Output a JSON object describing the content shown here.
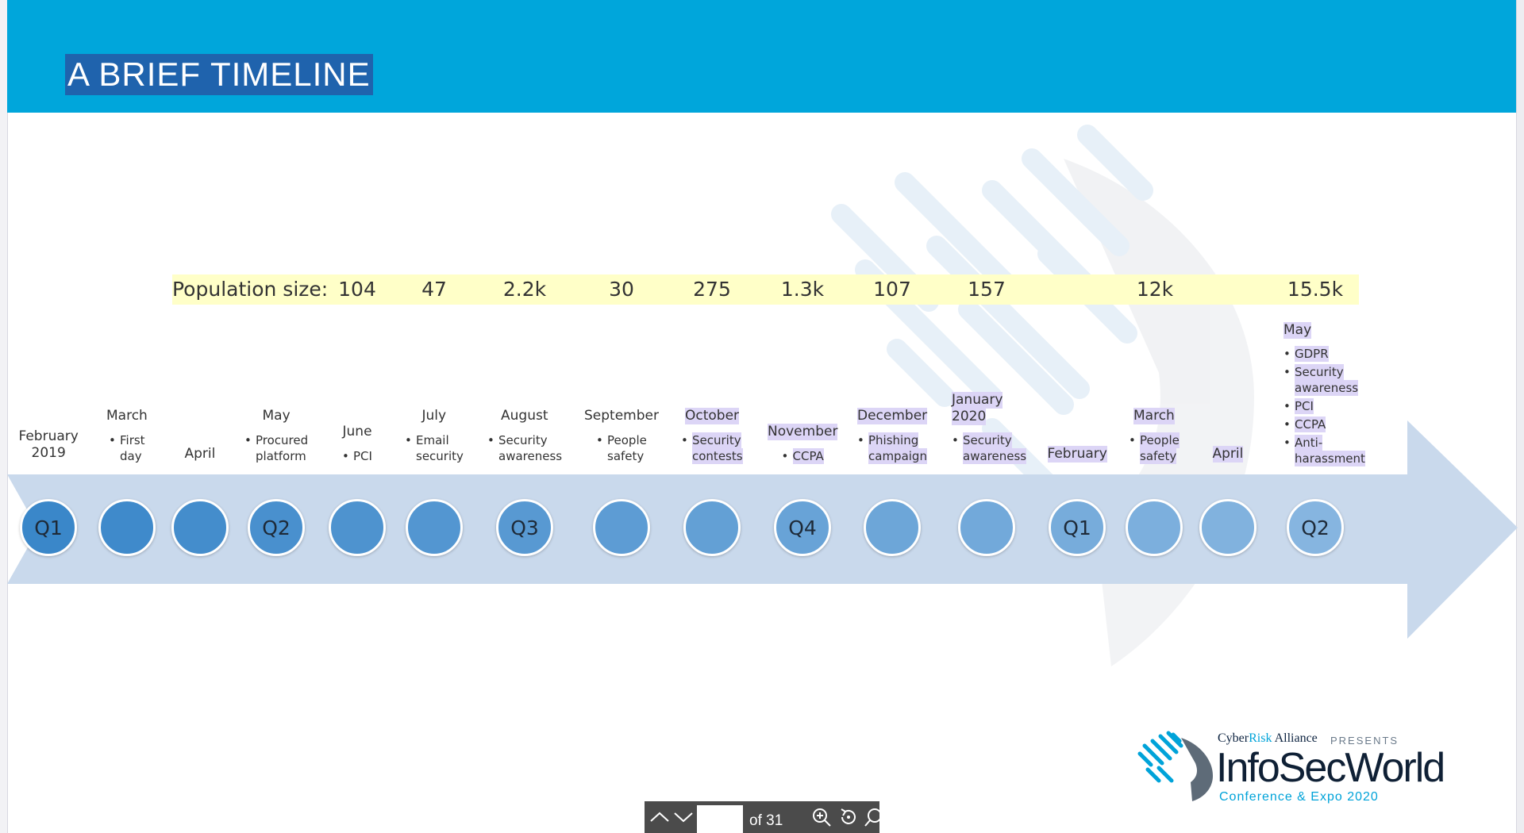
{
  "slide": {
    "title": "A BRIEF TIMELINE",
    "population_label": "Population size:",
    "population_values": [
      "104",
      "47",
      "2.2k",
      "30",
      "275",
      "1.3k",
      "107",
      "157",
      "12k",
      "15.5k"
    ],
    "quarter_circles": [
      "Q1",
      "",
      "",
      "Q2",
      "",
      "",
      "Q3",
      "",
      "",
      "Q4",
      "",
      "",
      "Q1",
      "",
      "",
      "Q2"
    ],
    "months": [
      {
        "lines": [
          "February",
          "2019"
        ]
      },
      {
        "lines": [
          "March"
        ],
        "items": [
          [
            "First",
            "day"
          ]
        ]
      },
      {
        "lines": [
          "April"
        ]
      },
      {
        "lines": [
          "May"
        ],
        "items": [
          [
            "Procured",
            "platform"
          ]
        ]
      },
      {
        "lines": [
          "June"
        ],
        "items": [
          [
            "PCI"
          ]
        ]
      },
      {
        "lines": [
          "July"
        ],
        "items": [
          [
            "Email",
            "security"
          ]
        ]
      },
      {
        "lines": [
          "August"
        ],
        "items": [
          [
            "Security",
            "awareness"
          ]
        ]
      },
      {
        "lines": [
          "September"
        ],
        "items": [
          [
            "People",
            "safety"
          ]
        ]
      },
      {
        "lines": [
          "October"
        ],
        "items": [
          [
            "Security",
            "contests"
          ]
        ]
      },
      {
        "lines": [
          "November"
        ],
        "items": [
          [
            "CCPA"
          ]
        ]
      },
      {
        "lines": [
          "December"
        ],
        "items": [
          [
            "Phishing",
            "campaign"
          ]
        ]
      },
      {
        "lines": [
          "January",
          "2020"
        ],
        "items": [
          [
            "Security",
            "awareness"
          ]
        ]
      },
      {
        "lines": [
          "February"
        ]
      },
      {
        "lines": [
          "March"
        ],
        "items": [
          [
            "People",
            "safety"
          ]
        ]
      },
      {
        "lines": [
          "April"
        ]
      },
      {
        "lines": [
          "May"
        ],
        "items": [
          [
            "GDPR"
          ],
          [
            "Security",
            "awareness"
          ],
          [
            "PCI"
          ],
          [
            "CCPA"
          ],
          [
            "Anti-",
            "harassment"
          ]
        ]
      }
    ]
  },
  "logo": {
    "cyber": "Cyber",
    "risk": "Risk",
    "alliance": " Alliance",
    "presents": "PRESENTS",
    "infosec": "InfoSec",
    "world": "World",
    "conference": "Conference & Expo 2020"
  },
  "toolbar": {
    "page_input_value": "",
    "page_total": "of 31",
    "prev_icon": "chevron-up-icon",
    "next_icon": "chevron-down-icon",
    "zoom_in_icon": "zoom-in-icon",
    "rotate_icon": "rotate-icon",
    "search_icon": "search-icon"
  },
  "colors": {
    "header": "#00a6db",
    "title_highlight": "#1f63ad",
    "population_band": "#ffffc8",
    "arrow": "#c9d9ec",
    "label_highlight": "#dcd5f6",
    "circle_start": "#3a87c9",
    "circle_end": "#86b5e0"
  }
}
